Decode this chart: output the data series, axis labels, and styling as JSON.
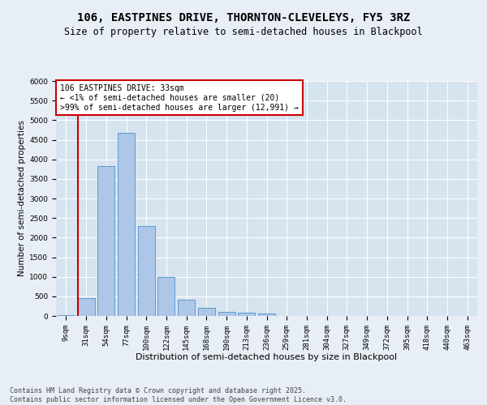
{
  "title": "106, EASTPINES DRIVE, THORNTON-CLEVELEYS, FY5 3RZ",
  "subtitle": "Size of property relative to semi-detached houses in Blackpool",
  "xlabel": "Distribution of semi-detached houses by size in Blackpool",
  "ylabel": "Number of semi-detached properties",
  "bar_labels": [
    "9sqm",
    "31sqm",
    "54sqm",
    "77sqm",
    "100sqm",
    "122sqm",
    "145sqm",
    "168sqm",
    "190sqm",
    "213sqm",
    "236sqm",
    "259sqm",
    "281sqm",
    "304sqm",
    "327sqm",
    "349sqm",
    "372sqm",
    "395sqm",
    "418sqm",
    "440sqm",
    "463sqm"
  ],
  "bar_values": [
    20,
    450,
    3820,
    4680,
    2300,
    1000,
    410,
    210,
    100,
    80,
    55,
    0,
    0,
    0,
    0,
    0,
    0,
    0,
    0,
    0,
    0
  ],
  "bar_color": "#aec6e8",
  "bar_edge_color": "#5b9bd5",
  "red_line_x": 1.0,
  "highlight_color": "#cc0000",
  "annotation_text": "106 EASTPINES DRIVE: 33sqm\n← <1% of semi-detached houses are smaller (20)\n>99% of semi-detached houses are larger (12,991) →",
  "ylim": [
    0,
    6000
  ],
  "yticks": [
    0,
    500,
    1000,
    1500,
    2000,
    2500,
    3000,
    3500,
    4000,
    4500,
    5000,
    5500,
    6000
  ],
  "background_color": "#e8eef5",
  "plot_bg_color": "#d6e4f0",
  "footer": "Contains HM Land Registry data © Crown copyright and database right 2025.\nContains public sector information licensed under the Open Government Licence v3.0.",
  "title_fontsize": 10,
  "subtitle_fontsize": 8.5,
  "xlabel_fontsize": 8,
  "ylabel_fontsize": 7.5,
  "tick_fontsize": 6.5,
  "annot_fontsize": 7,
  "footer_fontsize": 6
}
